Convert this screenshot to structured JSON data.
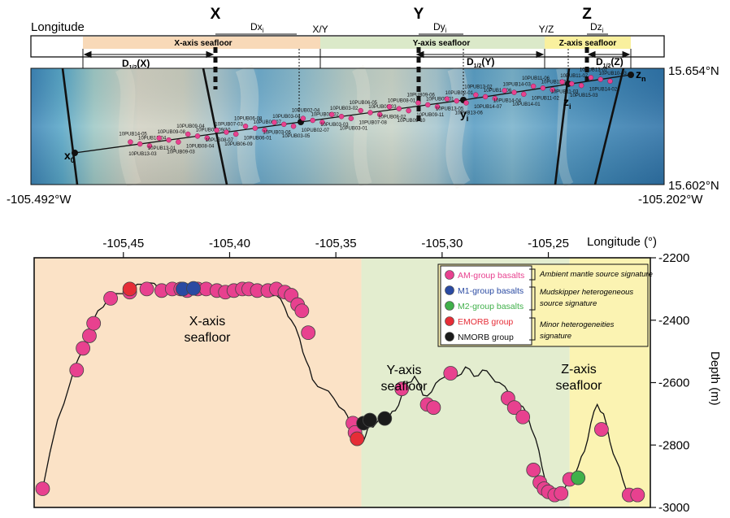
{
  "map": {
    "longitude_word": "Longitude",
    "axis_letters": {
      "x": "X",
      "y": "Y",
      "z": "Z"
    },
    "distance_labels": {
      "dx": "Dx",
      "dx_sub": "i",
      "dy": "Dy",
      "dy_sub": "i",
      "dz": "Dz",
      "dz_sub": "i"
    },
    "boundaries": {
      "xy": "X/Y",
      "yz": "Y/Z"
    },
    "seafloor_bars": {
      "x": "X-axis seafloor",
      "y": "Y-axis seafloor",
      "z": "Z-axis seafloor"
    },
    "half_distances": {
      "x": "D",
      "x_tail": "(X)",
      "y": "D",
      "y_tail": "(Y)",
      "z": "D",
      "z_tail": "(Z)",
      "sub": "1/2"
    },
    "end_labels": {
      "x0": "x",
      "x0_sub": "0",
      "yi": "y",
      "yi_sub": "i",
      "zi": "z",
      "zi_sub": "i",
      "zn": "z",
      "zn_sub": "n"
    },
    "lat_labels": {
      "top": "15.654°N",
      "bottom": "15.602°N"
    },
    "lon_labels": {
      "left": "-105.492°W",
      "right": "-105.202°W"
    },
    "samples": [
      "10PUB14-05",
      "10PUB13-03",
      "10PUB13-04",
      "10PUB13-01",
      "10PUB09-08",
      "10PUB09-03",
      "10PUB09-04",
      "10PUB08-04",
      "10PUB08-09/10",
      "10PUB08-07",
      "10PUB07-03",
      "10PUB06-09",
      "10PUB06-08",
      "10PUB06-01",
      "10PUB06-07",
      "10PUB03-06",
      "10PUB03-04",
      "10PUB03-05",
      "10PUB02-04",
      "10PUB02-07",
      "10PUB02-02",
      "10PUB03-03",
      "10PUB03-02",
      "10PUB03-01",
      "10PUB06-05",
      "10PUB07-08",
      "10PUB08-03",
      "10PUB08-02",
      "10PUB08-01",
      "10PUB09-10",
      "10PUB09-06",
      "10PUB09-11",
      "10PUB09-01",
      "10PUB13-05",
      "10PUB02-01",
      "10PUB13-06",
      "10PUB13-02",
      "10PUB14-07",
      "10PUB14-06",
      "10PUB14-04",
      "10PUB14-03",
      "10PUB14-01",
      "10PUB11-06",
      "10PUB11-02",
      "10PUB11-01",
      "10PUB11-03",
      "10PUB11-07",
      "10PUB15-03",
      "10PUB13-07",
      "10PUB14-02",
      "10PUB10-03"
    ]
  },
  "chart_data": {
    "type": "scatter",
    "xlabel": "Longitude (°)",
    "ylabel": "Depth (m)",
    "xlim": [
      -105.492,
      -105.202
    ],
    "ylim": [
      -3000,
      -2200
    ],
    "x_ticks": [
      "-105,45",
      "-105,40",
      "-105,35",
      "-105,30",
      "-105,25"
    ],
    "x_tick_values": [
      -105.45,
      -105.4,
      -105.35,
      -105.3,
      -105.25
    ],
    "y_ticks": [
      "-2200",
      "-2400",
      "-2600",
      "-2800",
      "-3000"
    ],
    "y_tick_values": [
      -2200,
      -2400,
      -2600,
      -2800,
      -3000
    ],
    "regions": [
      {
        "label_line1": "X-axis",
        "label_line2": "seafloor",
        "from": -105.492,
        "to": -105.338,
        "color": "#fbe2c6"
      },
      {
        "label_line1": "Y-axis",
        "label_line2": "seafloor",
        "from": -105.338,
        "to": -105.24,
        "color": "#e3edcf"
      },
      {
        "label_line1": "Z-axis",
        "label_line2": "seafloor",
        "from": -105.24,
        "to": -105.202,
        "color": "#fbf3b2"
      }
    ],
    "profile": [
      [
        -105.488,
        -2940
      ],
      [
        -105.481,
        -2720
      ],
      [
        -105.475,
        -2600
      ],
      [
        -105.471,
        -2520
      ],
      [
        -105.466,
        -2440
      ],
      [
        -105.462,
        -2370
      ],
      [
        -105.457,
        -2330
      ],
      [
        -105.451,
        -2315
      ],
      [
        -105.446,
        -2300
      ],
      [
        -105.441,
        -2285
      ],
      [
        -105.438,
        -2280
      ],
      [
        -105.433,
        -2300
      ],
      [
        -105.428,
        -2290
      ],
      [
        -105.423,
        -2300
      ],
      [
        -105.418,
        -2290
      ],
      [
        -105.413,
        -2295
      ],
      [
        -105.408,
        -2300
      ],
      [
        -105.403,
        -2295
      ],
      [
        -105.398,
        -2300
      ],
      [
        -105.393,
        -2290
      ],
      [
        -105.388,
        -2300
      ],
      [
        -105.383,
        -2310
      ],
      [
        -105.378,
        -2320
      ],
      [
        -105.374,
        -2360
      ],
      [
        -105.371,
        -2400
      ],
      [
        -105.367,
        -2460
      ],
      [
        -105.364,
        -2530
      ],
      [
        -105.361,
        -2590
      ],
      [
        -105.356,
        -2620
      ],
      [
        -105.351,
        -2650
      ],
      [
        -105.346,
        -2690
      ],
      [
        -105.343,
        -2740
      ],
      [
        -105.341,
        -2780
      ],
      [
        -105.338,
        -2790
      ],
      [
        -105.336,
        -2770
      ],
      [
        -105.334,
        -2740
      ],
      [
        -105.331,
        -2730
      ],
      [
        -105.328,
        -2720
      ],
      [
        -105.325,
        -2710
      ],
      [
        -105.322,
        -2690
      ],
      [
        -105.319,
        -2640
      ],
      [
        -105.316,
        -2600
      ],
      [
        -105.313,
        -2580
      ],
      [
        -105.309,
        -2640
      ],
      [
        -105.305,
        -2630
      ],
      [
        -105.301,
        -2590
      ],
      [
        -105.297,
        -2560
      ],
      [
        -105.293,
        -2580
      ],
      [
        -105.289,
        -2550
      ],
      [
        -105.285,
        -2580
      ],
      [
        -105.281,
        -2560
      ],
      [
        -105.277,
        -2580
      ],
      [
        -105.273,
        -2600
      ],
      [
        -105.268,
        -2640
      ],
      [
        -105.264,
        -2670
      ],
      [
        -105.26,
        -2700
      ],
      [
        -105.256,
        -2780
      ],
      [
        -105.253,
        -2870
      ],
      [
        -105.25,
        -2940
      ],
      [
        -105.247,
        -2960
      ],
      [
        -105.243,
        -2950
      ],
      [
        -105.24,
        -2920
      ],
      [
        -105.236,
        -2870
      ],
      [
        -105.233,
        -2820
      ],
      [
        -105.23,
        -2730
      ],
      [
        -105.227,
        -2670
      ],
      [
        -105.224,
        -2700
      ],
      [
        -105.221,
        -2790
      ],
      [
        -105.218,
        -2850
      ],
      [
        -105.215,
        -2910
      ],
      [
        -105.212,
        -2955
      ],
      [
        -105.208,
        -2970
      ]
    ],
    "series": [
      {
        "name": "AM-group basalts",
        "color": "#e8418f",
        "x": [
          -105.488,
          -105.472,
          -105.469,
          -105.466,
          -105.464,
          -105.456,
          -105.447,
          -105.439,
          -105.432,
          -105.427,
          -105.423,
          -105.42,
          -105.415,
          -105.411,
          -105.406,
          -105.402,
          -105.398,
          -105.394,
          -105.391,
          -105.387,
          -105.382,
          -105.378,
          -105.374,
          -105.371,
          -105.368,
          -105.366,
          -105.363,
          -105.342,
          -105.341,
          -105.319,
          -105.307,
          -105.304,
          -105.296,
          -105.269,
          -105.266,
          -105.262,
          -105.257,
          -105.254,
          -105.252,
          -105.25,
          -105.247,
          -105.244,
          -105.24,
          -105.225,
          -105.212,
          -105.208
        ],
        "y": [
          -2940,
          -2560,
          -2490,
          -2450,
          -2410,
          -2330,
          -2310,
          -2300,
          -2305,
          -2300,
          -2300,
          -2305,
          -2300,
          -2300,
          -2305,
          -2310,
          -2305,
          -2300,
          -2300,
          -2305,
          -2305,
          -2300,
          -2310,
          -2320,
          -2350,
          -2370,
          -2440,
          -2730,
          -2760,
          -2620,
          -2670,
          -2680,
          -2570,
          -2650,
          -2680,
          -2710,
          -2880,
          -2920,
          -2940,
          -2950,
          -2960,
          -2955,
          -2910,
          -2750,
          -2960,
          -2960
        ]
      },
      {
        "name": "M1-group basalts",
        "color": "#2a4aa2",
        "x": [
          -105.422,
          -105.417
        ],
        "y": [
          -2300,
          -2298
        ]
      },
      {
        "name": "M2-group basalts",
        "color": "#40b04a",
        "x": [
          -105.236
        ],
        "y": [
          -2905
        ]
      },
      {
        "name": "EMORB group",
        "color": "#e62d37",
        "x": [
          -105.447,
          -105.34
        ],
        "y": [
          -2300,
          -2780
        ]
      },
      {
        "name": "NMORB group",
        "color": "#1b1b1b",
        "x": [
          -105.337,
          -105.334,
          -105.327
        ],
        "y": [
          -2730,
          -2720,
          -2715
        ]
      }
    ],
    "legend_notes": [
      {
        "line1": "Ambient mantle source signature",
        "line2": ""
      },
      {
        "line1": "Mudskipper heterogeneous",
        "line2": "source signature"
      },
      {
        "line1": "Minor heterogeneities",
        "line2": "signature"
      }
    ]
  }
}
